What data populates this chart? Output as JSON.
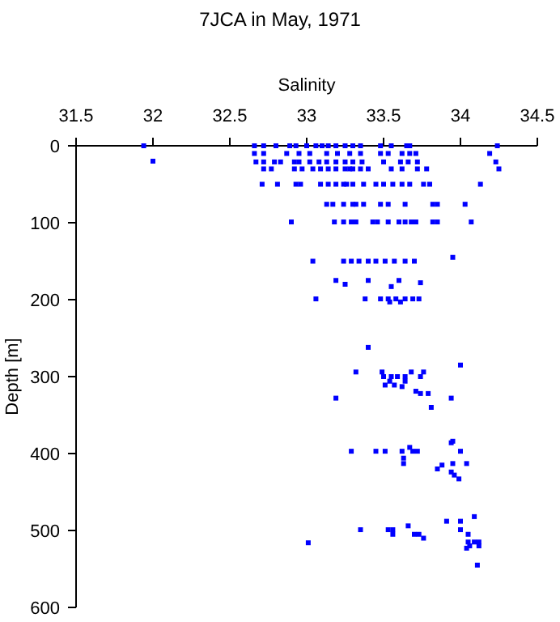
{
  "chart_data": {
    "type": "scatter",
    "title": "7JCA in May, 1971",
    "xlabel": "Salinity",
    "ylabel": "Depth [m]",
    "xlim": [
      31.5,
      34.5
    ],
    "xticks": [
      31.5,
      32,
      32.5,
      33,
      33.5,
      34,
      34.5
    ],
    "ylim": [
      600,
      0
    ],
    "yticks": [
      0,
      100,
      200,
      300,
      400,
      500,
      600
    ],
    "marker": "square",
    "series": [
      {
        "color": "#0000ff",
        "x": [
          31.94,
          32.66,
          32.72,
          32.8,
          32.89,
          32.93,
          33.0,
          33.06,
          33.1,
          33.14,
          33.19,
          33.25,
          33.3,
          33.35,
          33.48,
          33.55,
          33.65,
          33.67,
          34.24,
          32.66,
          32.72,
          32.87,
          32.95,
          33.02,
          33.13,
          33.2,
          33.28,
          33.35,
          33.48,
          33.53,
          33.62,
          33.67,
          33.71,
          34.19,
          32.0,
          32.67,
          32.72,
          32.79,
          32.83,
          32.92,
          32.95,
          33.02,
          33.08,
          33.13,
          33.19,
          33.25,
          33.3,
          33.36,
          33.5,
          33.61,
          33.66,
          33.72,
          34.23,
          32.72,
          32.77,
          32.92,
          32.97,
          33.04,
          33.09,
          33.14,
          33.19,
          33.25,
          33.28,
          33.3,
          33.35,
          33.4,
          33.55,
          33.62,
          33.72,
          33.78,
          34.25,
          32.71,
          32.81,
          32.93,
          32.96,
          33.09,
          33.14,
          33.19,
          33.24,
          33.26,
          33.3,
          33.37,
          33.45,
          33.5,
          33.56,
          33.62,
          33.67,
          33.76,
          33.8,
          34.13,
          33.13,
          33.17,
          33.24,
          33.3,
          33.32,
          33.37,
          33.48,
          33.53,
          33.64,
          33.82,
          33.85,
          34.03,
          32.9,
          33.18,
          33.24,
          33.29,
          33.32,
          33.43,
          33.46,
          33.53,
          33.6,
          33.64,
          33.68,
          33.71,
          33.82,
          33.85,
          34.07,
          33.04,
          33.24,
          33.29,
          33.34,
          33.4,
          33.45,
          33.51,
          33.57,
          33.64,
          33.7,
          33.95,
          33.25,
          33.55,
          33.19,
          33.4,
          33.6,
          33.74,
          33.06,
          33.38,
          33.48,
          33.53,
          33.58,
          33.64,
          33.69,
          33.73,
          33.54,
          33.61,
          33.4,
          34.0,
          33.32,
          33.49,
          33.68,
          33.76,
          33.5,
          33.55,
          33.59,
          33.64,
          33.74,
          33.54,
          33.64,
          33.51,
          33.57,
          33.62,
          33.71,
          33.79,
          33.74,
          33.19,
          33.94,
          33.81,
          33.94,
          33.29,
          33.45,
          33.51,
          33.62,
          33.69,
          33.72,
          33.67,
          33.95,
          34.0,
          33.63,
          33.63,
          33.95,
          34.04,
          33.88,
          33.85,
          33.94,
          33.96,
          33.99,
          34.09,
          33.91,
          34.0,
          33.66,
          33.35,
          33.53,
          33.56,
          34.0,
          33.7,
          33.73,
          34.05,
          33.56,
          33.76,
          34.05,
          34.09,
          34.12,
          33.01,
          34.06,
          34.12,
          34.04,
          34.11
        ],
        "values": [
          0,
          0,
          0,
          0,
          0,
          0,
          0,
          0,
          0,
          0,
          0,
          0,
          0,
          0,
          0,
          0,
          0,
          0,
          0,
          10,
          10,
          10,
          10,
          10,
          10,
          10,
          10,
          10,
          10,
          10,
          10,
          10,
          10,
          10,
          20,
          21,
          21,
          21,
          21,
          21,
          21,
          21,
          21,
          21,
          21,
          21,
          21,
          21,
          21,
          21,
          21,
          21,
          21,
          30,
          30,
          30,
          30,
          30,
          30,
          30,
          30,
          30,
          30,
          30,
          30,
          30,
          30,
          30,
          30,
          30,
          30,
          50,
          50,
          50,
          50,
          50,
          50,
          50,
          50,
          50,
          50,
          50,
          50,
          50,
          50,
          50,
          50,
          50,
          50,
          50,
          76,
          76,
          76,
          76,
          76,
          76,
          76,
          76,
          76,
          76,
          76,
          76,
          99,
          99,
          99,
          99,
          99,
          99,
          99,
          99,
          99,
          99,
          99,
          99,
          99,
          99,
          99,
          150,
          150,
          150,
          150,
          150,
          150,
          150,
          150,
          150,
          150,
          145,
          180,
          183,
          175,
          175,
          175,
          178,
          199,
          199,
          199,
          199,
          199,
          199,
          199,
          199,
          203,
          203,
          262,
          285,
          294,
          294,
          294,
          294,
          300,
          300,
          300,
          300,
          300,
          306,
          306,
          311,
          311,
          313,
          319,
          322,
          322,
          328,
          328,
          340,
          386,
          397,
          397,
          397,
          397,
          397,
          397,
          392,
          384,
          397,
          406,
          413,
          413,
          413,
          415,
          420,
          424,
          428,
          433,
          482,
          488,
          488,
          494,
          499,
          499,
          499,
          499,
          505,
          505,
          505,
          505,
          510,
          515,
          515,
          515,
          516,
          520,
          520,
          523,
          545
        ]
      }
    ]
  }
}
